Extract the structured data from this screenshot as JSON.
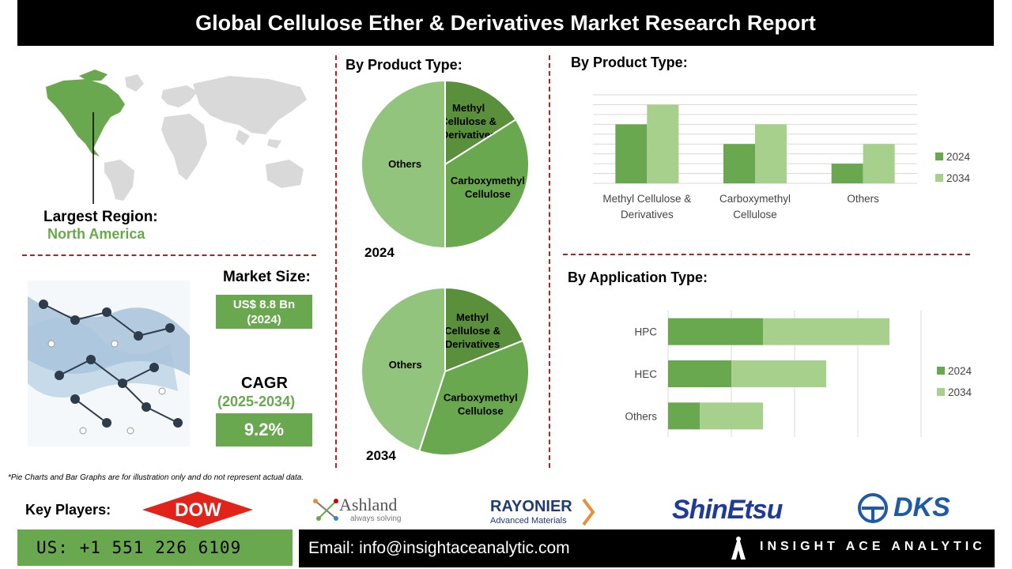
{
  "header": {
    "title": "Global Cellulose Ether & Derivatives Market Research Report"
  },
  "region": {
    "label": "Largest Region:",
    "value": "North America"
  },
  "market": {
    "size_label": "Market Size:",
    "size_value_line1": "US$ 8.8 Bn",
    "size_value_line2": "(2024)",
    "cagr_label": "CAGR",
    "cagr_period": "(2025-2034)",
    "cagr_value": "9.2%"
  },
  "pies": {
    "title": "By Product Type:",
    "pie_2024": {
      "year": "2024",
      "slices": [
        {
          "label_lines": [
            "Methyl",
            "Cellulose &",
            "Derivatives"
          ],
          "value": 16,
          "color": "#5a8f3c"
        },
        {
          "label_lines": [
            "Carboxymethyl",
            "Cellulose"
          ],
          "value": 34,
          "color": "#6aa84f"
        },
        {
          "label_lines": [
            "Others"
          ],
          "value": 50,
          "color": "#93c47d"
        }
      ]
    },
    "pie_2034": {
      "year": "2034",
      "slices": [
        {
          "label_lines": [
            "Methyl",
            "Cellulose &",
            "Derivatives"
          ],
          "value": 19,
          "color": "#5a8f3c"
        },
        {
          "label_lines": [
            "Carboxymethyl",
            "Cellulose"
          ],
          "value": 36,
          "color": "#6aa84f"
        },
        {
          "label_lines": [
            "Others"
          ],
          "value": 45,
          "color": "#93c47d"
        }
      ]
    }
  },
  "chart_data": [
    {
      "type": "bar",
      "title": "By Product Type:",
      "categories": [
        "Methyl Cellulose & Derivatives",
        "Carboxymethyl Cellulose",
        "Others"
      ],
      "category_lines": [
        [
          "Methyl Cellulose &",
          "Derivatives"
        ],
        [
          "Carboxymethyl",
          "Cellulose"
        ],
        [
          "Others"
        ]
      ],
      "series": [
        {
          "name": "2024",
          "values": [
            3,
            2,
            1
          ],
          "color": "#6aa84f"
        },
        {
          "name": "2034",
          "values": [
            4,
            3,
            2
          ],
          "color": "#a8d08d"
        }
      ],
      "ylim": [
        0,
        4.5
      ],
      "grid": true,
      "legend": "right"
    },
    {
      "type": "bar",
      "orientation": "horizontal-stacked",
      "title": "By Application Type:",
      "categories": [
        "HPC",
        "HEC",
        "Others"
      ],
      "series": [
        {
          "name": "2024",
          "values": [
            3,
            2,
            1
          ],
          "color": "#6aa84f"
        },
        {
          "name": "2034",
          "values": [
            4,
            3,
            2
          ],
          "color": "#a8d08d"
        }
      ],
      "xlim": [
        0,
        8
      ],
      "grid": true,
      "legend": "right"
    }
  ],
  "disclaimer": "*Pie Charts and Bar Graphs are for illustration only and do not represent actual data.",
  "key_players": {
    "label": "Key Players:",
    "logos": {
      "dow": "DOW",
      "ashland": "Ashland",
      "ashland_tagline": "always solving",
      "rayonier": "RAYONIER",
      "rayonier_sub": "Advanced Materials",
      "shinetsu": "ShinEtsu",
      "dks": "DKS"
    }
  },
  "footer": {
    "phone": "US: +1 551 226 6109",
    "email": "Email: info@insightaceanalytic.com",
    "brand": "INSIGHT ACE ANALYTIC"
  }
}
